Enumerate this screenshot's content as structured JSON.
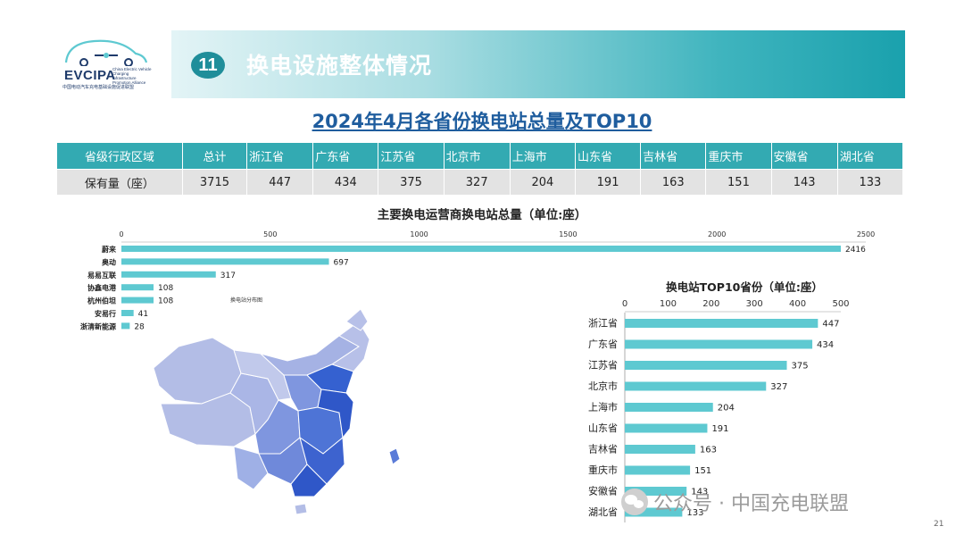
{
  "logo": {
    "name": "EVCIPA",
    "subtitle": "China Electric Vehicle Charging Infrastructure Promotion Alliance",
    "cn": "中国电动汽车充电基础设施促进联盟"
  },
  "header": {
    "number": "11",
    "title": "换电设施整体情况"
  },
  "main_title": "2024年4月各省份换电站总量及TOP10",
  "province_table": {
    "headers": [
      "省级行政区域",
      "总计",
      "浙江省",
      "广东省",
      "江苏省",
      "北京市",
      "上海市",
      "山东省",
      "吉林省",
      "重庆市",
      "安徽省",
      "湖北省"
    ],
    "row": [
      "保有量（座）",
      "3715",
      "447",
      "434",
      "375",
      "327",
      "204",
      "191",
      "163",
      "151",
      "143",
      "133"
    ]
  },
  "map": {
    "caption": "换电站分布图"
  },
  "chart_data": [
    {
      "type": "bar",
      "orientation": "horizontal",
      "title": "主要换电运营商换电站总量（单位:座）",
      "categories": [
        "蔚来",
        "奥动",
        "易易互联",
        "协鑫电港",
        "杭州伯坦",
        "安易行",
        "浙清新能源"
      ],
      "values": [
        2416,
        697,
        317,
        108,
        108,
        41,
        28
      ],
      "ticks": [
        "0",
        "500",
        "1000",
        "1500",
        "2000",
        "2500"
      ],
      "xlim": [
        0,
        2500
      ],
      "axis_position": "top",
      "color": "#5ec9d1"
    },
    {
      "type": "bar",
      "orientation": "horizontal",
      "title": "换电站TOP10省份（单位:座）",
      "categories": [
        "浙江省",
        "广东省",
        "江苏省",
        "北京市",
        "上海市",
        "山东省",
        "吉林省",
        "重庆市",
        "安徽省",
        "湖北省"
      ],
      "values": [
        447,
        434,
        375,
        327,
        204,
        191,
        163,
        151,
        143,
        133
      ],
      "ticks": [
        "0",
        "100",
        "200",
        "300",
        "400",
        "500"
      ],
      "xlim": [
        0,
        500
      ],
      "axis_position": "top",
      "color": "#5ec9d1"
    }
  ],
  "watermark": "公众号 · 中国充电联盟",
  "page_number": "21",
  "colors": {
    "teal": "#33aab2",
    "bar": "#5ec9d1",
    "title_blue": "#1f5d9e",
    "map_light": "#b3bde6",
    "map_mid": "#7f96df",
    "map_dark": "#3561d0"
  }
}
